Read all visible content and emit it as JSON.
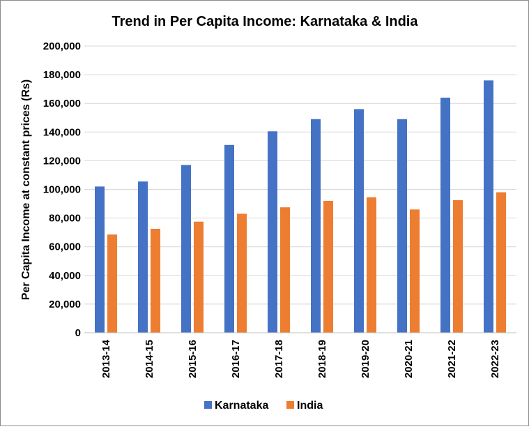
{
  "chart_data": {
    "type": "bar",
    "title": "Trend in Per Capita Income: Karnataka & India",
    "xlabel": "",
    "ylabel": "Per Capita Income at constant prices (Rs)",
    "categories": [
      "2013-14",
      "2014-15",
      "2015-16",
      "2016-17",
      "2017-18",
      "2018-19",
      "2019-20",
      "2020-21",
      "2021-22",
      "2022-23"
    ],
    "series": [
      {
        "name": "Karnataka",
        "color": "#4472C4",
        "values": [
          102000,
          105500,
          117000,
          131000,
          140500,
          149000,
          156000,
          149000,
          164000,
          176000
        ]
      },
      {
        "name": "India",
        "color": "#ED7D31",
        "values": [
          68500,
          72500,
          77500,
          83000,
          87500,
          92000,
          94500,
          86000,
          92500,
          98000
        ]
      }
    ],
    "yticks": [
      "0",
      "20,000",
      "40,000",
      "60,000",
      "80,000",
      "100,000",
      "120,000",
      "140,000",
      "160,000",
      "180,000",
      "200,000"
    ],
    "ylim": [
      0,
      200000
    ],
    "grid": true,
    "legend_position": "bottom"
  }
}
